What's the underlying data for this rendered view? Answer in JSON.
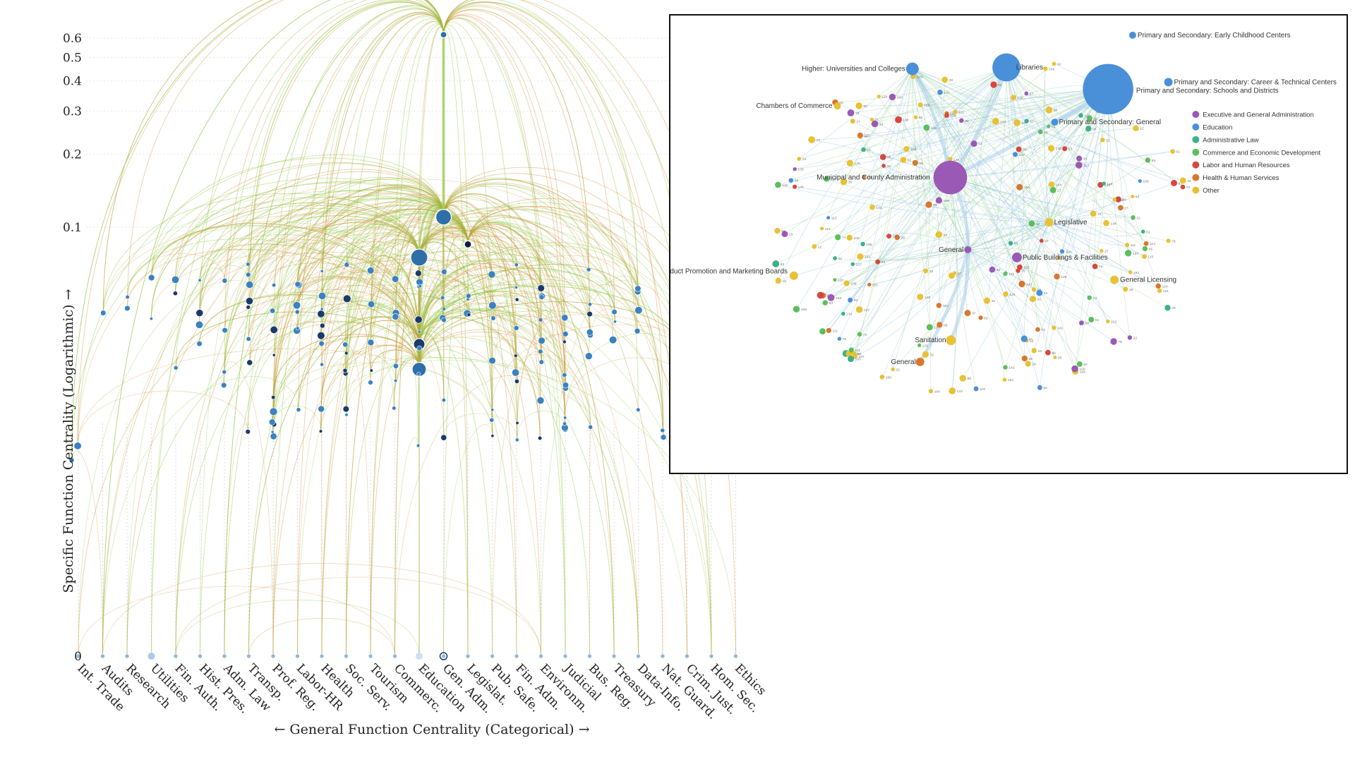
{
  "chart_data": [
    {
      "type": "scatter",
      "subtype": "hierarchical-edge-arc-diagram",
      "xlabel": "← General Function Centrality (Categorical) →",
      "ylabel": "Specific Function Centrality (Logarithmic) →",
      "y_scale": "log",
      "y_ticks": [
        "0.6",
        "0.5",
        "0.4",
        "0.3",
        "0.2",
        "0.1",
        "0"
      ],
      "y_tick_values": [
        0.6,
        0.5,
        0.4,
        0.3,
        0.2,
        0.1,
        0
      ],
      "categories": [
        "Int. Trade",
        "Audits",
        "Research",
        "Utilities",
        "Fin. Auth.",
        "Hist. Pres.",
        "Adm. Law",
        "Transp.",
        "Prof. Reg.",
        "Labor-HR",
        "Health",
        "Soc. Serv.",
        "Tourism",
        "Commerc.",
        "Education",
        "Gen. Adm.",
        "Legislat.",
        "Pub. Safe.",
        "Fin. Adm.",
        "Environm.",
        "Judicial",
        "Bus. Reg.",
        "Treasury",
        "Data-Info.",
        "Nat. Guard.",
        "Crim. Just.",
        "Hom. Sec.",
        "Ethics"
      ],
      "highlight_nodes": [
        {
          "category": "Gen. Adm.",
          "y": 0.62,
          "size": "small"
        },
        {
          "category": "Gen. Adm.",
          "y": 0.11,
          "size": "large"
        },
        {
          "category": "Education",
          "y": 0.075,
          "size": "large"
        },
        {
          "category": "Legislat.",
          "y": 0.085,
          "size": "small"
        },
        {
          "category": "Education",
          "y": 0.033,
          "size": "medium"
        },
        {
          "category": "Education",
          "y": 0.026,
          "size": "medium"
        }
      ],
      "edge_colors": {
        "green": "#8dc63f",
        "orange": "#d9903c"
      },
      "node_colors": {
        "light": "#4a90c8",
        "dark": "#1a3a6b"
      }
    },
    {
      "type": "network",
      "title": "",
      "labeled_nodes": [
        {
          "label": "Primary and Secondary: Early Childhood Centers",
          "group": "Education"
        },
        {
          "label": "Higher: Universities and Colleges",
          "group": "Education"
        },
        {
          "label": "Libraries",
          "group": "Education"
        },
        {
          "label": "Primary and Secondary: Career & Technical Centers",
          "group": "Education"
        },
        {
          "label": "Primary and Secondary: Schools and Districts",
          "group": "Education"
        },
        {
          "label": "Chambers of Commerce",
          "group": "Other"
        },
        {
          "label": "Primary and Secondary: General",
          "group": "Education"
        },
        {
          "label": "Municipal and County Administration",
          "group": "Executive and General Administration"
        },
        {
          "label": "Legislative",
          "group": "Other"
        },
        {
          "label": "General",
          "group": "Executive and General Administration"
        },
        {
          "label": "Public Buildings & Facilities",
          "group": "Executive and General Administration"
        },
        {
          "label": "Agriculture, Product Promotion and Marketing Boards",
          "group": "Other"
        },
        {
          "label": "General Licensing",
          "group": "Other"
        },
        {
          "label": "Sanitation",
          "group": "Other"
        },
        {
          "label": "General",
          "group": "Health & Human Services"
        }
      ],
      "legend": [
        {
          "label": "Executive and General Administration",
          "color": "#9b59b6"
        },
        {
          "label": "Education",
          "color": "#4a90d9"
        },
        {
          "label": "Administrative Law",
          "color": "#3cb08a"
        },
        {
          "label": "Commerce and Economic Development",
          "color": "#5cbf5c"
        },
        {
          "label": "Labor and Human Resources",
          "color": "#d9463c"
        },
        {
          "label": "Health & Human Services",
          "color": "#d9772e"
        },
        {
          "label": "Other",
          "color": "#e8c234"
        }
      ]
    }
  ]
}
